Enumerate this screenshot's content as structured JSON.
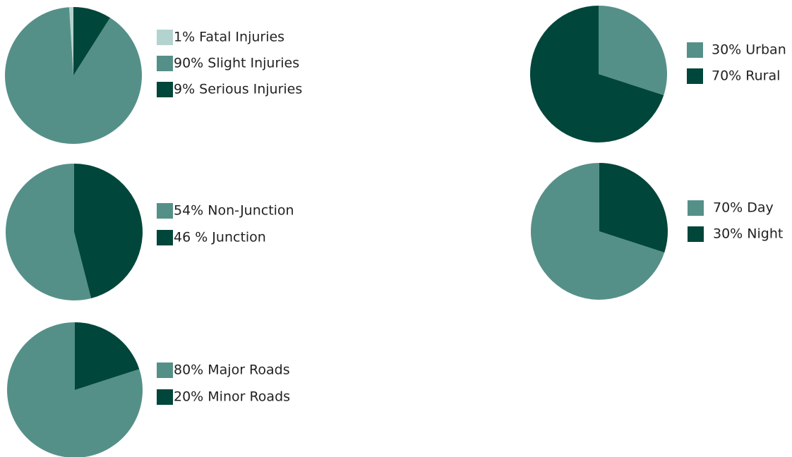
{
  "chart_data": [
    {
      "type": "pie",
      "direction": "counterclockwise",
      "categories": [
        "1% Fatal Injuries",
        "90% Slight Injuries",
        "9% Serious Injuries"
      ],
      "values": [
        1,
        90,
        9
      ],
      "colors": [
        "#b3d3ce",
        "#559088",
        "#00463a"
      ]
    },
    {
      "type": "pie",
      "direction": "counterclockwise",
      "categories": [
        "54% Non-Junction",
        "46 % Junction"
      ],
      "values": [
        54,
        46
      ],
      "colors": [
        "#559088",
        "#00463a"
      ]
    },
    {
      "type": "pie",
      "direction": "counterclockwise",
      "categories": [
        "80% Major Roads",
        "20% Minor Roads"
      ],
      "values": [
        80,
        20
      ],
      "colors": [
        "#559088",
        "#00463a"
      ]
    },
    {
      "type": "pie",
      "direction": "clockwise",
      "categories": [
        "30% Urban",
        "70% Rural"
      ],
      "values": [
        30,
        70
      ],
      "colors": [
        "#559088",
        "#00463a"
      ]
    },
    {
      "type": "pie",
      "direction": "counterclockwise",
      "categories": [
        "70% Day",
        "30% Night"
      ],
      "values": [
        70,
        30
      ],
      "colors": [
        "#559088",
        "#00463a"
      ]
    }
  ]
}
